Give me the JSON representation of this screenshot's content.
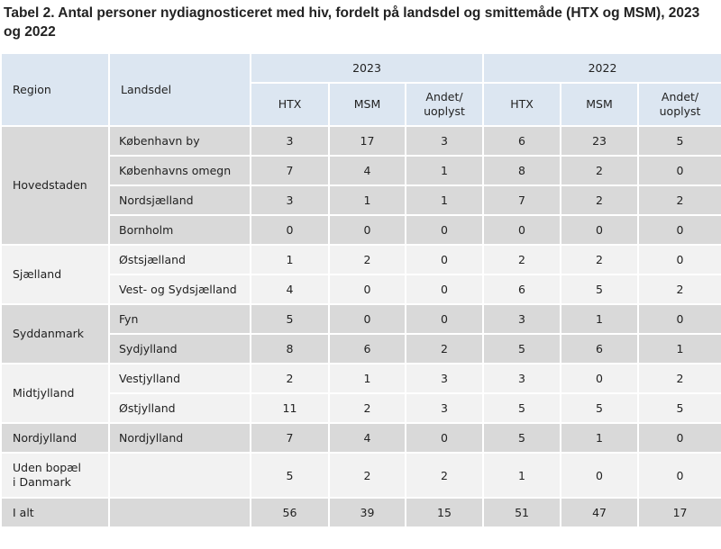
{
  "title": "Tabel 2. Antal personer nydiagnosticeret med hiv, fordelt på landsdel og smittemåde (HTX og MSM), 2023 og 2022",
  "headers": {
    "region": "Region",
    "landsdel": "Landsdel",
    "year1": "2023",
    "year2": "2022",
    "htx": "HTX",
    "msm": "MSM",
    "andet_line1": "Andet/",
    "andet_line2": "uoplyst"
  },
  "groups": [
    {
      "region": "Hovedstaden",
      "rows": [
        {
          "landsdel": "København by",
          "v": [
            "3",
            "17",
            "3",
            "6",
            "23",
            "5"
          ]
        },
        {
          "landsdel": "Københavns omegn",
          "v": [
            "7",
            "4",
            "1",
            "8",
            "2",
            "0"
          ]
        },
        {
          "landsdel": "Nordsjælland",
          "v": [
            "3",
            "1",
            "1",
            "7",
            "2",
            "2"
          ]
        },
        {
          "landsdel": "Bornholm",
          "v": [
            "0",
            "0",
            "0",
            "0",
            "0",
            "0"
          ]
        }
      ]
    },
    {
      "region": "Sjælland",
      "rows": [
        {
          "landsdel": "Østsjælland",
          "v": [
            "1",
            "2",
            "0",
            "2",
            "2",
            "0"
          ]
        },
        {
          "landsdel": "Vest- og Sydsjælland",
          "v": [
            "4",
            "0",
            "0",
            "6",
            "5",
            "2"
          ]
        }
      ]
    },
    {
      "region": "Syddanmark",
      "rows": [
        {
          "landsdel": "Fyn",
          "v": [
            "5",
            "0",
            "0",
            "3",
            "1",
            "0"
          ]
        },
        {
          "landsdel": "Sydjylland",
          "v": [
            "8",
            "6",
            "2",
            "5",
            "6",
            "1"
          ]
        }
      ]
    },
    {
      "region": "Midtjylland",
      "rows": [
        {
          "landsdel": "Vestjylland",
          "v": [
            "2",
            "1",
            "3",
            "3",
            "0",
            "2"
          ]
        },
        {
          "landsdel": "Østjylland",
          "v": [
            "11",
            "2",
            "3",
            "5",
            "5",
            "5"
          ]
        }
      ]
    },
    {
      "region": "Nordjylland",
      "rows": [
        {
          "landsdel": "Nordjylland",
          "v": [
            "7",
            "4",
            "0",
            "5",
            "1",
            "0"
          ]
        }
      ]
    },
    {
      "region_line1": "Uden bopæl",
      "region_line2": "i Danmark",
      "rows": [
        {
          "landsdel": "",
          "v": [
            "5",
            "2",
            "2",
            "1",
            "0",
            "0"
          ]
        }
      ]
    }
  ],
  "total": {
    "label": "I alt",
    "v": [
      "56",
      "39",
      "15",
      "51",
      "47",
      "17"
    ]
  }
}
